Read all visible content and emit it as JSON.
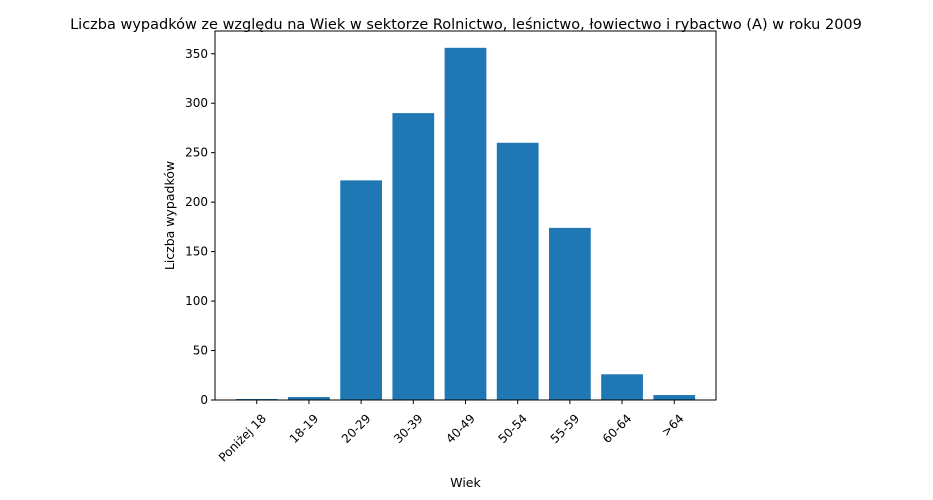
{
  "chart_data": {
    "type": "bar",
    "title": "Liczba wypadków ze względu na Wiek w sektorze Rolnictwo, leśnictwo, łowiectwo i rybactwo (A) w roku 2009",
    "xlabel": "Wiek",
    "ylabel": "Liczba wypadków",
    "categories": [
      "Poniżej 18",
      "18-19",
      "20-29",
      "30-39",
      "40-49",
      "50-54",
      "55-59",
      "60-64",
      ">64"
    ],
    "values": [
      1,
      3,
      222,
      290,
      356,
      260,
      174,
      26,
      5
    ],
    "ylim": [
      0,
      373
    ],
    "yticks": [
      0,
      50,
      100,
      150,
      200,
      250,
      300,
      350
    ],
    "grid": false,
    "bar_color": "#1f77b4"
  }
}
